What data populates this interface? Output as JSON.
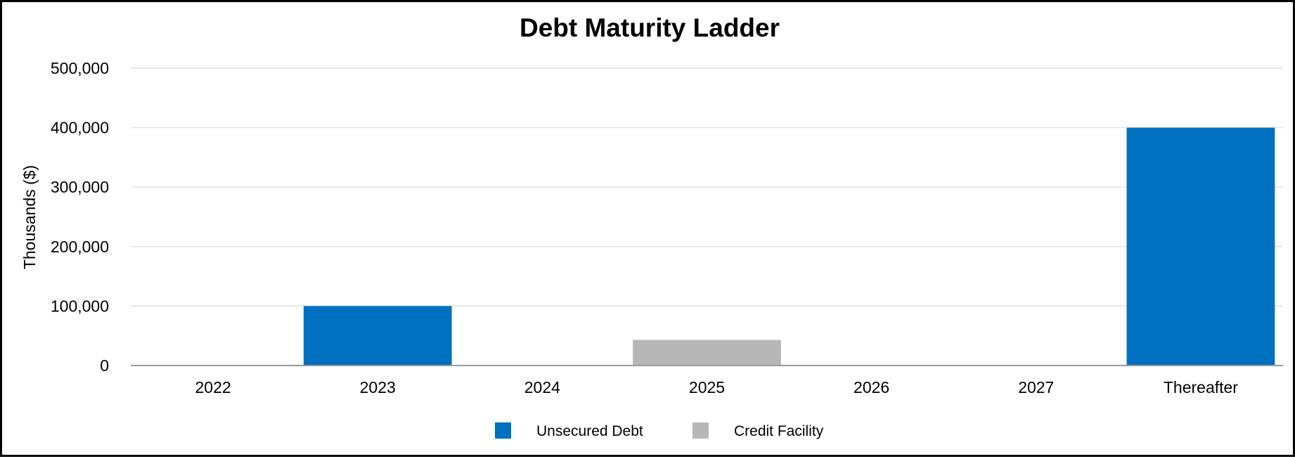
{
  "chart_data": {
    "type": "bar",
    "title": "Debt Maturity Ladder",
    "xlabel": "",
    "ylabel": "Thousands ($)",
    "categories": [
      "2022",
      "2023",
      "2024",
      "2025",
      "2026",
      "2027",
      "Thereafter"
    ],
    "ylim": [
      0,
      500000
    ],
    "yticks": [
      0,
      100000,
      200000,
      300000,
      400000,
      500000
    ],
    "ytick_labels": [
      "0",
      "100,000",
      "200,000",
      "300,000",
      "400,000",
      "500,000"
    ],
    "grid": true,
    "legend_position": "bottom",
    "stacked": true,
    "series": [
      {
        "name": "Unsecured Debt",
        "color": "#0070c0",
        "values": [
          0,
          100000,
          0,
          0,
          0,
          0,
          400000
        ]
      },
      {
        "name": "Credit Facility",
        "color": "#b7b7b7",
        "values": [
          0,
          0,
          0,
          43000,
          0,
          0,
          0
        ]
      }
    ]
  }
}
